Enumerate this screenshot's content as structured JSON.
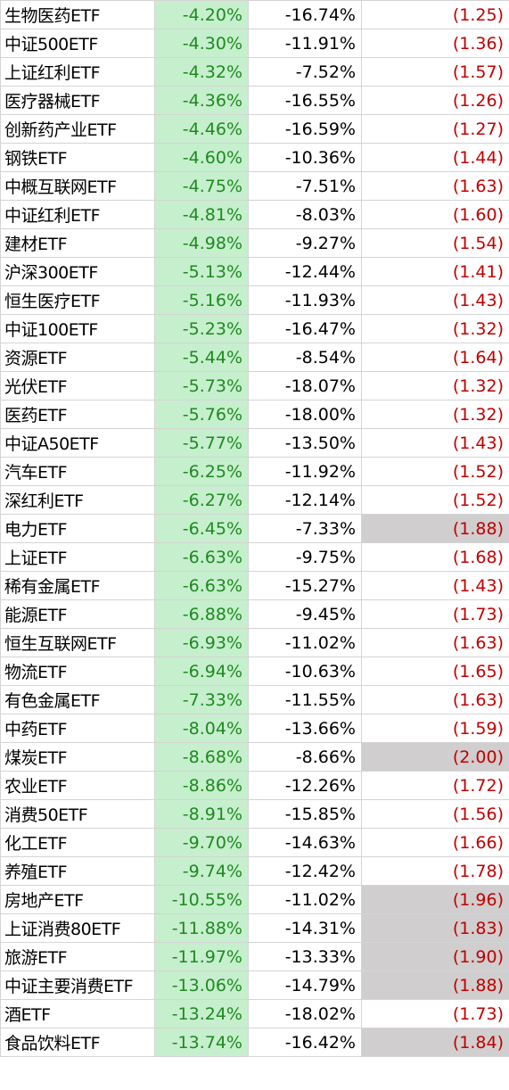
{
  "table": {
    "rows": [
      {
        "cells": [
          "生物医药ETF",
          "-4.20%",
          "-16.74%",
          "(1.25)"
        ],
        "highlight": false
      },
      {
        "cells": [
          "中证500ETF",
          "-4.30%",
          "-11.91%",
          "(1.36)"
        ],
        "highlight": false
      },
      {
        "cells": [
          "上证红利ETF",
          "-4.32%",
          "-7.52%",
          "(1.57)"
        ],
        "highlight": false
      },
      {
        "cells": [
          "医疗器械ETF",
          "-4.36%",
          "-16.55%",
          "(1.26)"
        ],
        "highlight": false
      },
      {
        "cells": [
          "创新药产业ETF",
          "-4.46%",
          "-16.59%",
          "(1.27)"
        ],
        "highlight": false
      },
      {
        "cells": [
          "钢铁ETF",
          "-4.60%",
          "-10.36%",
          "(1.44)"
        ],
        "highlight": false
      },
      {
        "cells": [
          "中概互联网ETF",
          "-4.75%",
          "-7.51%",
          "(1.63)"
        ],
        "highlight": false
      },
      {
        "cells": [
          "中证红利ETF",
          "-4.81%",
          "-8.03%",
          "(1.60)"
        ],
        "highlight": false
      },
      {
        "cells": [
          "建材ETF",
          "-4.98%",
          "-9.27%",
          "(1.54)"
        ],
        "highlight": false
      },
      {
        "cells": [
          "沪深300ETF",
          "-5.13%",
          "-12.44%",
          "(1.41)"
        ],
        "highlight": false
      },
      {
        "cells": [
          "恒生医疗ETF",
          "-5.16%",
          "-11.93%",
          "(1.43)"
        ],
        "highlight": false
      },
      {
        "cells": [
          "中证100ETF",
          "-5.23%",
          "-16.47%",
          "(1.32)"
        ],
        "highlight": false
      },
      {
        "cells": [
          "资源ETF",
          "-5.44%",
          "-8.54%",
          "(1.64)"
        ],
        "highlight": false
      },
      {
        "cells": [
          "光伏ETF",
          "-5.73%",
          "-18.07%",
          "(1.32)"
        ],
        "highlight": false
      },
      {
        "cells": [
          "医药ETF",
          "-5.76%",
          "-18.00%",
          "(1.32)"
        ],
        "highlight": false
      },
      {
        "cells": [
          "中证A50ETF",
          "-5.77%",
          "-13.50%",
          "(1.43)"
        ],
        "highlight": false
      },
      {
        "cells": [
          "汽车ETF",
          "-6.25%",
          "-11.92%",
          "(1.52)"
        ],
        "highlight": false
      },
      {
        "cells": [
          "深红利ETF",
          "-6.27%",
          "-12.14%",
          "(1.52)"
        ],
        "highlight": false
      },
      {
        "cells": [
          "电力ETF",
          "-6.45%",
          "-7.33%",
          "(1.88)"
        ],
        "highlight": true
      },
      {
        "cells": [
          "上证ETF",
          "-6.63%",
          "-9.75%",
          "(1.68)"
        ],
        "highlight": false
      },
      {
        "cells": [
          "稀有金属ETF",
          "-6.63%",
          "-15.27%",
          "(1.43)"
        ],
        "highlight": false
      },
      {
        "cells": [
          "能源ETF",
          "-6.88%",
          "-9.45%",
          "(1.73)"
        ],
        "highlight": false
      },
      {
        "cells": [
          "恒生互联网ETF",
          "-6.93%",
          "-11.02%",
          "(1.63)"
        ],
        "highlight": false
      },
      {
        "cells": [
          "物流ETF",
          "-6.94%",
          "-10.63%",
          "(1.65)"
        ],
        "highlight": false
      },
      {
        "cells": [
          "有色金属ETF",
          "-7.33%",
          "-11.55%",
          "(1.63)"
        ],
        "highlight": false
      },
      {
        "cells": [
          "中药ETF",
          "-8.04%",
          "-13.66%",
          "(1.59)"
        ],
        "highlight": false
      },
      {
        "cells": [
          "煤炭ETF",
          "-8.68%",
          "-8.66%",
          "(2.00)"
        ],
        "highlight": true
      },
      {
        "cells": [
          "农业ETF",
          "-8.86%",
          "-12.26%",
          "(1.72)"
        ],
        "highlight": false
      },
      {
        "cells": [
          "消费50ETF",
          "-8.91%",
          "-15.85%",
          "(1.56)"
        ],
        "highlight": false
      },
      {
        "cells": [
          "化工ETF",
          "-9.70%",
          "-14.63%",
          "(1.66)"
        ],
        "highlight": false
      },
      {
        "cells": [
          "养殖ETF",
          "-9.74%",
          "-12.42%",
          "(1.78)"
        ],
        "highlight": false
      },
      {
        "cells": [
          "房地产ETF",
          "-10.55%",
          "-11.02%",
          "(1.96)"
        ],
        "highlight": true
      },
      {
        "cells": [
          "上证消费80ETF",
          "-11.88%",
          "-14.31%",
          "(1.83)"
        ],
        "highlight": true
      },
      {
        "cells": [
          "旅游ETF",
          "-11.97%",
          "-13.33%",
          "(1.90)"
        ],
        "highlight": true
      },
      {
        "cells": [
          "中证主要消费ETF",
          "-13.06%",
          "-14.79%",
          "(1.88)"
        ],
        "highlight": true
      },
      {
        "cells": [
          "酒ETF",
          "-13.24%",
          "-18.02%",
          "(1.73)"
        ],
        "highlight": false
      },
      {
        "cells": [
          "食品饮料ETF",
          "-13.74%",
          "-16.42%",
          "(1.84)"
        ],
        "highlight": true
      }
    ]
  }
}
